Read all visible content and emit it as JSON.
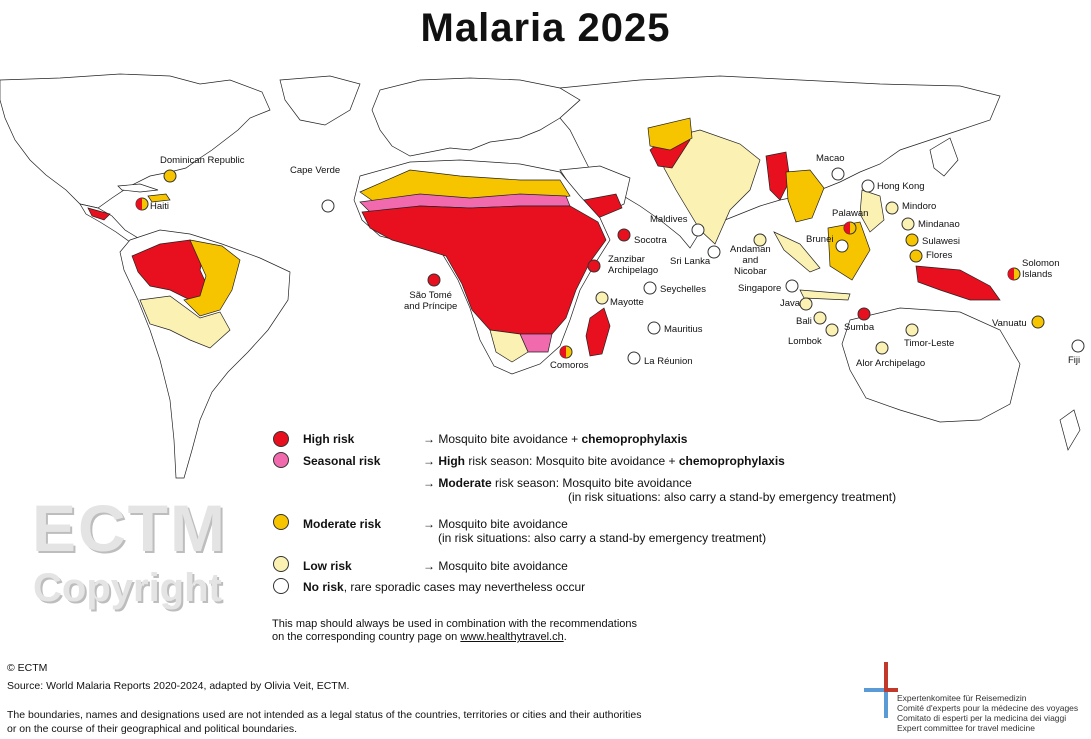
{
  "title": "Malaria 2025",
  "colors": {
    "high": "#e8101e",
    "seasonal": "#f06aad",
    "moderate": "#f7c400",
    "low": "#fbf1b3",
    "none": "#ffffff",
    "border": "#222222"
  },
  "markers": [
    {
      "label": "Dominican Republic",
      "risk": "moderate"
    },
    {
      "label": "Haiti",
      "risk": "high-moderate"
    },
    {
      "label": "Cape Verde",
      "risk": "none"
    },
    {
      "label": "São Tomé\nand Príncipe",
      "risk": "high"
    },
    {
      "label": "Socotra",
      "risk": "high"
    },
    {
      "label": "Zanzibar\nArchipelago",
      "risk": "high"
    },
    {
      "label": "Maldives",
      "risk": "none"
    },
    {
      "label": "Sri Lanka",
      "risk": "none"
    },
    {
      "label": "Seychelles",
      "risk": "none"
    },
    {
      "label": "Mayotte",
      "risk": "low"
    },
    {
      "label": "Comoros",
      "risk": "high-moderate"
    },
    {
      "label": "Mauritius",
      "risk": "none"
    },
    {
      "label": "La Réunion",
      "risk": "none"
    },
    {
      "label": "Andaman\nand\nNicobar",
      "risk": "low"
    },
    {
      "label": "Macao",
      "risk": "none"
    },
    {
      "label": "Hong Kong",
      "risk": "none"
    },
    {
      "label": "Mindoro",
      "risk": "low"
    },
    {
      "label": "Palawan",
      "risk": "high-moderate"
    },
    {
      "label": "Mindanao",
      "risk": "low"
    },
    {
      "label": "Brunei",
      "risk": "none"
    },
    {
      "label": "Sulawesi",
      "risk": "moderate"
    },
    {
      "label": "Flores",
      "risk": "moderate"
    },
    {
      "label": "Singapore",
      "risk": "none"
    },
    {
      "label": "Java",
      "risk": "low"
    },
    {
      "label": "Bali",
      "risk": "low"
    },
    {
      "label": "Lombok",
      "risk": "low"
    },
    {
      "label": "Sumba",
      "risk": "high"
    },
    {
      "label": "Alor Archipelago",
      "risk": "low"
    },
    {
      "label": "Timor-Leste",
      "risk": "low"
    },
    {
      "label": "Solomon\nIslands",
      "risk": "high-moderate"
    },
    {
      "label": "Vanuatu",
      "risk": "moderate"
    },
    {
      "label": "Fiji",
      "risk": "none"
    }
  ],
  "legend": {
    "high_name": "High risk",
    "high_text_a": "→ Mosquito bite avoidance + ",
    "high_text_b": "chemoprophylaxis",
    "seasonal_name": "Seasonal risk",
    "seasonal_text_a": "→ ",
    "seasonal_text_b": "High",
    "seasonal_text_c": " risk season: Mosquito bite avoidance + ",
    "seasonal_text_d": "chemoprophylaxis",
    "seasonal2_a": "→ ",
    "seasonal2_b": "Moderate",
    "seasonal2_c": " risk season:  Mosquito bite avoidance",
    "seasonal2_d": "(in risk situations: also carry a stand-by emergency treatment)",
    "moderate_name": "Moderate risk",
    "moderate_text_a": "→ Mosquito bite avoidance",
    "moderate_text_b": "(in risk situations: also carry a stand-by emergency treatment)",
    "low_name": "Low risk",
    "low_text": "→ Mosquito bite avoidance",
    "none_name": "No risk",
    "none_text": ", rare sporadic cases may nevertheless occur",
    "note_line1": "This map should always be used in combination with the recommendations",
    "note_line2a": "on the corresponding country page on ",
    "note_link": "www.healthytravel.ch",
    "note_line2b": "."
  },
  "watermark": {
    "line1": "ECTM",
    "line2": "Copyright"
  },
  "footer": {
    "copyright": "© ECTM",
    "source": "Source: World Malaria Reports 2020-2024, adapted by Olivia Veit, ECTM.",
    "disclaimer1": "The boundaries, names and designations used are not intended as a legal status of the countries, territories or cities and their authorities",
    "disclaimer2": "or on the course of their geographical and political boundaries."
  },
  "org": {
    "de": "Expertenkomitee für Reisemedizin",
    "fr": "Comité d'experts pour la médecine des voyages",
    "it": "Comitato di esperti per la medicina dei viaggi",
    "en": "Expert committee for travel medicine"
  }
}
